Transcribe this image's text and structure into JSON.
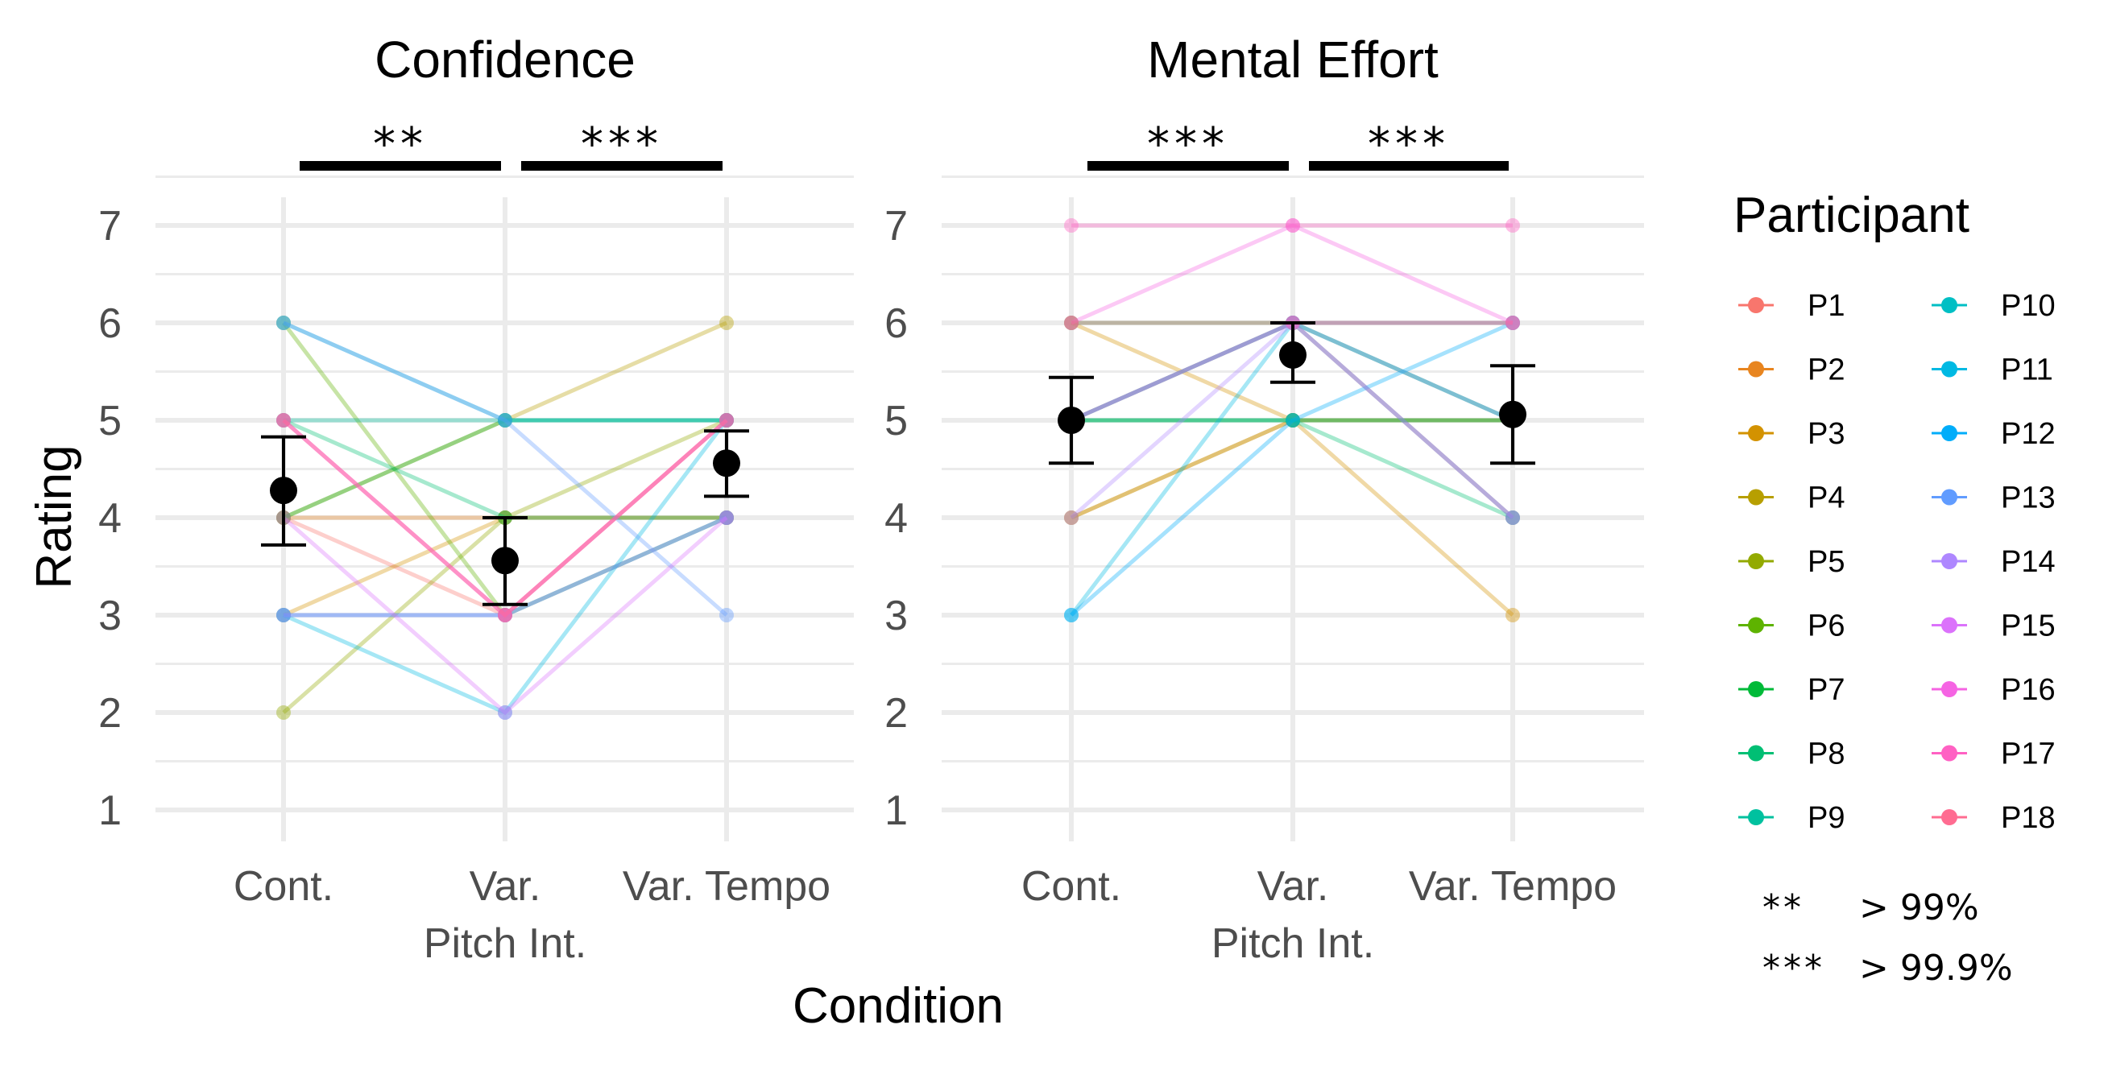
{
  "chart_data": [
    {
      "type": "line",
      "title": "Confidence",
      "xlabel": "Condition",
      "ylabel": "Rating",
      "categories": [
        "Cont.",
        "Var.\nPitch Int.",
        "Var. Tempo"
      ],
      "ylim": [
        1,
        7
      ],
      "yticks": [
        1,
        2,
        3,
        4,
        5,
        6,
        7
      ],
      "grid": true,
      "significance": [
        {
          "from": 0,
          "to": 1,
          "label": "**"
        },
        {
          "from": 1,
          "to": 2,
          "label": "***"
        }
      ],
      "summary": {
        "mean": [
          4.28,
          3.56,
          4.56
        ],
        "lower": [
          3.72,
          3.11,
          4.22
        ],
        "upper": [
          4.83,
          4.0,
          4.89
        ]
      },
      "series": [
        {
          "name": "P1",
          "values": [
            4,
            3,
            5
          ]
        },
        {
          "name": "P2",
          "values": [
            4,
            4,
            4
          ]
        },
        {
          "name": "P3",
          "values": [
            3,
            4,
            4
          ]
        },
        {
          "name": "P4",
          "values": [
            4,
            5,
            6
          ]
        },
        {
          "name": "P5",
          "values": [
            2,
            4,
            5
          ]
        },
        {
          "name": "P6",
          "values": [
            6,
            3,
            4
          ]
        },
        {
          "name": "P7",
          "values": [
            4,
            5,
            5
          ]
        },
        {
          "name": "P8",
          "values": [
            5,
            4,
            4
          ]
        },
        {
          "name": "P9",
          "values": [
            5,
            5,
            5
          ]
        },
        {
          "name": "P10",
          "values": [
            6,
            5,
            5
          ]
        },
        {
          "name": "P11",
          "values": [
            3,
            2,
            5
          ]
        },
        {
          "name": "P12",
          "values": [
            3,
            3,
            4
          ]
        },
        {
          "name": "P13",
          "values": [
            6,
            5,
            3
          ]
        },
        {
          "name": "P14",
          "values": [
            3,
            3,
            4
          ]
        },
        {
          "name": "P15",
          "values": [
            4,
            2,
            4
          ]
        },
        {
          "name": "P16",
          "values": [
            5,
            3,
            5
          ]
        },
        {
          "name": "P17",
          "values": [
            5,
            3,
            5
          ]
        },
        {
          "name": "P18",
          "values": [
            5,
            3,
            5
          ]
        }
      ]
    },
    {
      "type": "line",
      "title": "Mental Effort",
      "xlabel": "Condition",
      "ylabel": "Rating",
      "categories": [
        "Cont.",
        "Var.\nPitch Int.",
        "Var. Tempo"
      ],
      "ylim": [
        1,
        7
      ],
      "yticks": [
        1,
        2,
        3,
        4,
        5,
        6,
        7
      ],
      "grid": true,
      "significance": [
        {
          "from": 0,
          "to": 1,
          "label": "***"
        },
        {
          "from": 1,
          "to": 2,
          "label": "***"
        }
      ],
      "summary": {
        "mean": [
          5.0,
          5.67,
          5.06
        ],
        "lower": [
          4.56,
          5.39,
          4.56
        ],
        "upper": [
          5.44,
          6.0,
          5.56
        ]
      },
      "series": [
        {
          "name": "P1",
          "values": [
            5,
            6,
            4
          ]
        },
        {
          "name": "P2",
          "values": [
            4,
            5,
            5
          ]
        },
        {
          "name": "P3",
          "values": [
            6,
            5,
            3
          ]
        },
        {
          "name": "P4",
          "values": [
            4,
            5,
            5
          ]
        },
        {
          "name": "P5",
          "values": [
            5,
            6,
            5
          ]
        },
        {
          "name": "P6",
          "values": [
            5,
            5,
            5
          ]
        },
        {
          "name": "P7",
          "values": [
            6,
            6,
            6
          ]
        },
        {
          "name": "P8",
          "values": [
            5,
            5,
            4
          ]
        },
        {
          "name": "P9",
          "values": [
            5,
            5,
            5
          ]
        },
        {
          "name": "P10",
          "values": [
            5,
            6,
            4
          ]
        },
        {
          "name": "P11",
          "values": [
            3,
            6,
            5
          ]
        },
        {
          "name": "P12",
          "values": [
            3,
            5,
            6
          ]
        },
        {
          "name": "P13",
          "values": [
            5,
            6,
            5
          ]
        },
        {
          "name": "P14",
          "values": [
            4,
            6,
            6
          ]
        },
        {
          "name": "P15",
          "values": [
            5,
            6,
            4
          ]
        },
        {
          "name": "P16",
          "values": [
            6,
            7,
            6
          ]
        },
        {
          "name": "P17",
          "values": [
            7,
            7,
            7
          ]
        },
        {
          "name": "P18",
          "values": [
            6,
            6,
            6
          ]
        }
      ]
    }
  ],
  "legend": {
    "title": "Participant",
    "placement": "right",
    "items": [
      {
        "label": "P1",
        "color": "#F8766D"
      },
      {
        "label": "P2",
        "color": "#E8851F"
      },
      {
        "label": "P3",
        "color": "#D39200"
      },
      {
        "label": "P4",
        "color": "#B79F00"
      },
      {
        "label": "P5",
        "color": "#93AA00"
      },
      {
        "label": "P6",
        "color": "#5EB300"
      },
      {
        "label": "P7",
        "color": "#00BA38"
      },
      {
        "label": "P8",
        "color": "#00BF74"
      },
      {
        "label": "P9",
        "color": "#00C19F"
      },
      {
        "label": "P10",
        "color": "#00BFC4"
      },
      {
        "label": "P11",
        "color": "#00B9E3"
      },
      {
        "label": "P12",
        "color": "#00ADFA"
      },
      {
        "label": "P13",
        "color": "#619CFF"
      },
      {
        "label": "P14",
        "color": "#AE87FF"
      },
      {
        "label": "P15",
        "color": "#DB72FB"
      },
      {
        "label": "P16",
        "color": "#F564E3"
      },
      {
        "label": "P17",
        "color": "#FF61C3"
      },
      {
        "label": "P18",
        "color": "#FF6C91"
      }
    ]
  },
  "significance_key": [
    {
      "symbol": "**",
      "text": "> 99%"
    },
    {
      "symbol": "***",
      "text": "> 99.9%"
    }
  ]
}
